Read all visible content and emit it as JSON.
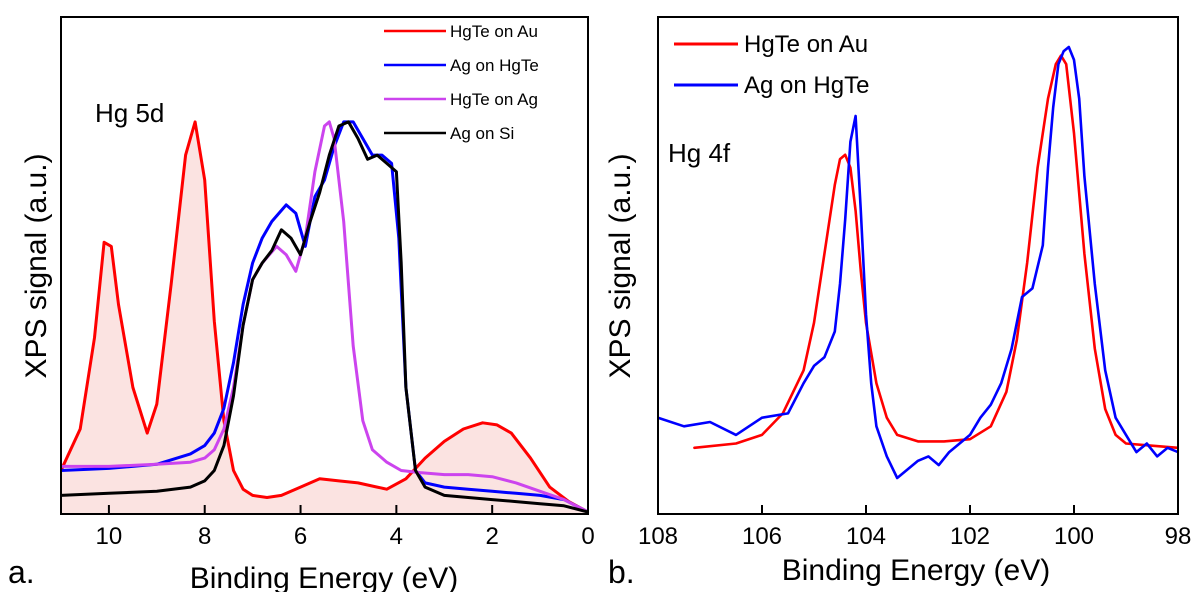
{
  "chart_data": [
    {
      "panel_label": "a.",
      "type": "line",
      "xlabel": "Binding Energy (eV)",
      "ylabel": "XPS signal (a.u.)",
      "xlim": [
        11,
        0
      ],
      "ylim": [
        0,
        1
      ],
      "x_reversed": true,
      "x_ticks": [
        10,
        8,
        6,
        4,
        2,
        0
      ],
      "y_ticks_shown": false,
      "annotation": "Hg 5d",
      "legend_position": "top-right",
      "series": [
        {
          "name": "HgTe on Au",
          "color": "#ff0000",
          "filled": true,
          "fill_color": "#fbe3e1",
          "x": [
            11,
            10.6,
            10.3,
            10.1,
            9.95,
            9.8,
            9.5,
            9.2,
            9.0,
            8.7,
            8.4,
            8.2,
            8.0,
            7.8,
            7.6,
            7.4,
            7.2,
            7.0,
            6.7,
            6.4,
            6.0,
            5.6,
            5.2,
            4.8,
            4.4,
            4.2,
            3.8,
            3.4,
            3.0,
            2.6,
            2.2,
            1.9,
            1.6,
            1.2,
            0.8,
            0.4,
            0.0
          ],
          "values": [
            0.1,
            0.2,
            0.42,
            0.65,
            0.64,
            0.5,
            0.3,
            0.19,
            0.26,
            0.55,
            0.86,
            0.94,
            0.8,
            0.46,
            0.22,
            0.1,
            0.055,
            0.04,
            0.035,
            0.04,
            0.06,
            0.08,
            0.075,
            0.07,
            0.06,
            0.055,
            0.08,
            0.13,
            0.17,
            0.2,
            0.215,
            0.21,
            0.19,
            0.13,
            0.06,
            0.025,
            0.0
          ]
        },
        {
          "name": "Ag on HgTe",
          "color": "#0000ff",
          "filled": false,
          "x": [
            11,
            10,
            9,
            8.3,
            8.0,
            7.8,
            7.6,
            7.4,
            7.2,
            7.0,
            6.8,
            6.6,
            6.3,
            6.1,
            5.9,
            5.7,
            5.5,
            5.3,
            5.1,
            4.9,
            4.7,
            4.5,
            4.3,
            4.1,
            3.95,
            3.8,
            3.6,
            3.4,
            3.0,
            2.5,
            2.0,
            1.5,
            1.0,
            0.5,
            0.0
          ],
          "values": [
            0.1,
            0.105,
            0.115,
            0.14,
            0.16,
            0.19,
            0.25,
            0.36,
            0.5,
            0.6,
            0.66,
            0.7,
            0.74,
            0.72,
            0.64,
            0.76,
            0.8,
            0.88,
            0.94,
            0.94,
            0.9,
            0.86,
            0.86,
            0.84,
            0.66,
            0.3,
            0.1,
            0.07,
            0.06,
            0.055,
            0.05,
            0.045,
            0.04,
            0.03,
            0.0
          ]
        },
        {
          "name": "HgTe on Ag",
          "color": "#cc44ee",
          "filled": false,
          "x": [
            11,
            10,
            9,
            8.3,
            8.0,
            7.8,
            7.6,
            7.4,
            7.2,
            7.0,
            6.8,
            6.5,
            6.3,
            6.1,
            5.9,
            5.7,
            5.5,
            5.4,
            5.3,
            5.1,
            4.9,
            4.7,
            4.5,
            4.2,
            3.9,
            3.5,
            3.0,
            2.5,
            2.0,
            1.5,
            1.0,
            0.5,
            0.0
          ],
          "values": [
            0.11,
            0.11,
            0.115,
            0.12,
            0.13,
            0.15,
            0.2,
            0.3,
            0.45,
            0.56,
            0.6,
            0.64,
            0.62,
            0.58,
            0.66,
            0.82,
            0.93,
            0.94,
            0.9,
            0.7,
            0.4,
            0.22,
            0.15,
            0.12,
            0.1,
            0.095,
            0.09,
            0.09,
            0.085,
            0.07,
            0.05,
            0.03,
            0.0
          ]
        },
        {
          "name": "Ag on Si",
          "color": "#000000",
          "filled": false,
          "x": [
            11,
            10,
            9,
            8.3,
            8.0,
            7.8,
            7.6,
            7.4,
            7.2,
            7.0,
            6.8,
            6.6,
            6.4,
            6.2,
            6.0,
            5.8,
            5.6,
            5.4,
            5.2,
            5.0,
            4.8,
            4.6,
            4.4,
            4.2,
            4.0,
            3.9,
            3.8,
            3.6,
            3.4,
            3.0,
            2.5,
            2.0,
            1.5,
            1.0,
            0.5,
            0.0
          ],
          "values": [
            0.04,
            0.045,
            0.05,
            0.06,
            0.075,
            0.1,
            0.16,
            0.28,
            0.45,
            0.56,
            0.6,
            0.63,
            0.68,
            0.66,
            0.62,
            0.7,
            0.77,
            0.86,
            0.93,
            0.94,
            0.9,
            0.85,
            0.86,
            0.84,
            0.82,
            0.6,
            0.3,
            0.1,
            0.06,
            0.04,
            0.035,
            0.03,
            0.025,
            0.02,
            0.015,
            0.0
          ]
        }
      ]
    },
    {
      "panel_label": "b.",
      "type": "line",
      "xlabel": "Binding Energy (eV)",
      "ylabel": "XPS signal (a.u.)",
      "xlim": [
        108,
        98
      ],
      "ylim": [
        0,
        1
      ],
      "x_reversed": true,
      "x_ticks": [
        108,
        106,
        104,
        102,
        100,
        98
      ],
      "y_ticks_shown": false,
      "annotation": "Hg 4f",
      "legend_position": "top-left",
      "series": [
        {
          "name": "HgTe on Au",
          "color": "#ff0000",
          "x": [
            107.3,
            106.5,
            106.0,
            105.6,
            105.2,
            105.0,
            104.8,
            104.6,
            104.5,
            104.4,
            104.3,
            104.2,
            104.1,
            104.0,
            103.8,
            103.6,
            103.4,
            103.0,
            102.5,
            102.0,
            101.6,
            101.3,
            101.1,
            100.9,
            100.7,
            100.5,
            100.35,
            100.25,
            100.15,
            100.0,
            99.8,
            99.6,
            99.4,
            99.2,
            99.0,
            98.5,
            98.0
          ],
          "values": [
            0.07,
            0.08,
            0.1,
            0.15,
            0.25,
            0.36,
            0.52,
            0.68,
            0.74,
            0.75,
            0.72,
            0.62,
            0.48,
            0.36,
            0.22,
            0.14,
            0.1,
            0.085,
            0.085,
            0.09,
            0.12,
            0.2,
            0.32,
            0.5,
            0.72,
            0.88,
            0.96,
            0.98,
            0.96,
            0.8,
            0.52,
            0.3,
            0.16,
            0.1,
            0.08,
            0.075,
            0.07
          ]
        },
        {
          "name": "Ag on HgTe",
          "color": "#0000ff",
          "x": [
            108,
            107.5,
            107.0,
            106.5,
            106.0,
            105.5,
            105.2,
            105.0,
            104.8,
            104.6,
            104.5,
            104.4,
            104.3,
            104.2,
            104.1,
            104.0,
            103.9,
            103.8,
            103.6,
            103.4,
            103.2,
            103.0,
            102.8,
            102.6,
            102.4,
            102.2,
            102.0,
            101.8,
            101.6,
            101.4,
            101.2,
            101.0,
            100.8,
            100.6,
            100.5,
            100.4,
            100.3,
            100.2,
            100.1,
            100.0,
            99.9,
            99.8,
            99.6,
            99.4,
            99.2,
            99.0,
            98.8,
            98.6,
            98.4,
            98.2,
            98.0
          ],
          "values": [
            0.14,
            0.12,
            0.13,
            0.1,
            0.14,
            0.15,
            0.22,
            0.26,
            0.28,
            0.34,
            0.45,
            0.6,
            0.78,
            0.84,
            0.62,
            0.38,
            0.22,
            0.12,
            0.05,
            0.0,
            0.02,
            0.04,
            0.05,
            0.03,
            0.06,
            0.08,
            0.1,
            0.14,
            0.17,
            0.22,
            0.3,
            0.42,
            0.44,
            0.54,
            0.72,
            0.86,
            0.96,
            0.99,
            1.0,
            0.97,
            0.88,
            0.7,
            0.45,
            0.25,
            0.14,
            0.1,
            0.06,
            0.08,
            0.05,
            0.07,
            0.06
          ]
        }
      ]
    }
  ]
}
